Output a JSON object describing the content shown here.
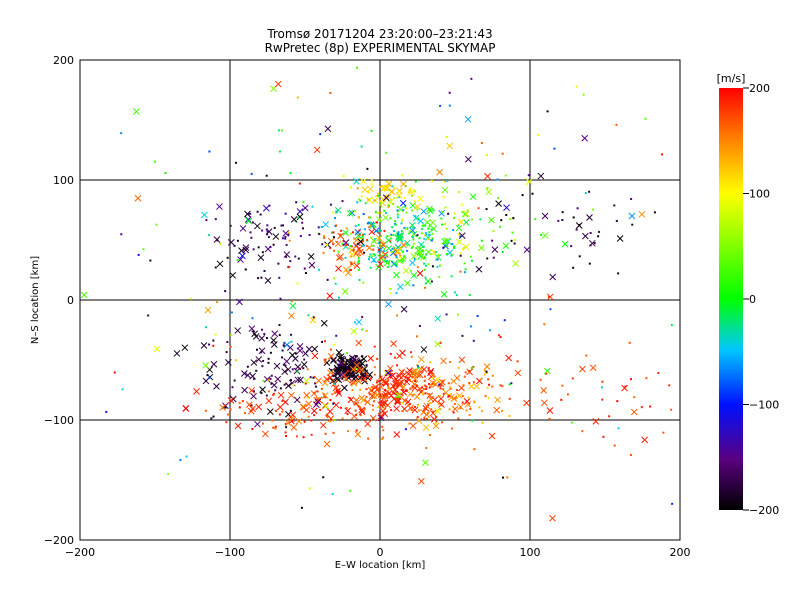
{
  "title_line1": "Tromsø 20171204 23:20:00–23:21:43",
  "title_line2": "RwPretec (8p) EXPERIMENTAL SKYMAP",
  "chart_data": {
    "type": "scatter",
    "title": "Tromsø 20171204 23:20:00–23:21:43",
    "subtitle": "RwPretec (8p) EXPERIMENTAL SKYMAP",
    "xlabel": "E–W location [km]",
    "ylabel": "N–S location [km]",
    "xlim": [
      -200,
      200
    ],
    "ylim": [
      -200,
      200
    ],
    "x_ticks": [
      -200,
      -100,
      0,
      100,
      200
    ],
    "y_ticks": [
      -200,
      -100,
      0,
      100,
      200
    ],
    "x_tick_labels": [
      "−200",
      "−100",
      "0",
      "100",
      "200"
    ],
    "y_tick_labels": [
      "−200",
      "−100",
      "0",
      "100",
      "200"
    ],
    "grid": true,
    "colorbar": {
      "label": "[m/s]",
      "range": [
        -200,
        200
      ],
      "ticks": [
        200,
        100,
        0,
        -100,
        -200
      ],
      "tick_labels": [
        "200",
        "100",
        "0",
        "−100",
        "−200"
      ],
      "colormap": "rainbow: black(-200) → purple → blue(-100) → cyan → green(0) → yellow(100) → red(200)"
    },
    "marker_legend": "small dots and × crosses colored by velocity",
    "clusters": [
      {
        "x": -20,
        "y": -57,
        "sx": 6,
        "sy": 5,
        "n": 110,
        "vmin": -200,
        "vmax": -180,
        "cross_frac": 0.8
      },
      {
        "x": 0,
        "y": -75,
        "sx": 30,
        "sy": 15,
        "n": 260,
        "vmin": 140,
        "vmax": 200,
        "cross_frac": 0.3
      },
      {
        "x": 10,
        "y": -72,
        "sx": 8,
        "sy": 8,
        "n": 60,
        "vmin": 170,
        "vmax": 200,
        "cross_frac": 0.6
      },
      {
        "x": 40,
        "y": -80,
        "sx": 22,
        "sy": 14,
        "n": 90,
        "vmin": 110,
        "vmax": 200,
        "cross_frac": 0.3
      },
      {
        "x": -70,
        "y": -55,
        "sx": 25,
        "sy": 20,
        "n": 120,
        "vmin": -200,
        "vmax": -150,
        "cross_frac": 0.4
      },
      {
        "x": -60,
        "y": -95,
        "sx": 30,
        "sy": 12,
        "n": 70,
        "vmin": 150,
        "vmax": 200,
        "cross_frac": 0.5
      },
      {
        "x": 10,
        "y": 50,
        "sx": 22,
        "sy": 18,
        "n": 230,
        "vmin": -80,
        "vmax": 60,
        "cross_frac": 0.25
      },
      {
        "x": -15,
        "y": 45,
        "sx": 12,
        "sy": 10,
        "n": 70,
        "vmin": 130,
        "vmax": 200,
        "cross_frac": 0.3
      },
      {
        "x": 40,
        "y": 60,
        "sx": 30,
        "sy": 18,
        "n": 110,
        "vmin": -20,
        "vmax": 120,
        "cross_frac": 0.25
      },
      {
        "x": -75,
        "y": 50,
        "sx": 25,
        "sy": 18,
        "n": 90,
        "vmin": -200,
        "vmax": -130,
        "cross_frac": 0.3
      },
      {
        "x": 0,
        "y": 90,
        "sx": 12,
        "sy": 6,
        "n": 45,
        "vmin": 80,
        "vmax": 140,
        "cross_frac": 0.3
      },
      {
        "x": 125,
        "y": 60,
        "sx": 35,
        "sy": 25,
        "n": 50,
        "vmin": -200,
        "vmax": -150,
        "cross_frac": 0.3
      },
      {
        "x": 130,
        "y": -80,
        "sx": 40,
        "sy": 25,
        "n": 45,
        "vmin": 150,
        "vmax": 200,
        "cross_frac": 0.3
      },
      {
        "x": 0,
        "y": 10,
        "sx": 100,
        "sy": 100,
        "n": 260,
        "vmin": -200,
        "vmax": 200,
        "cross_frac": 0.2
      }
    ]
  },
  "colors": {
    "axis": "#000000",
    "background": "#ffffff"
  }
}
